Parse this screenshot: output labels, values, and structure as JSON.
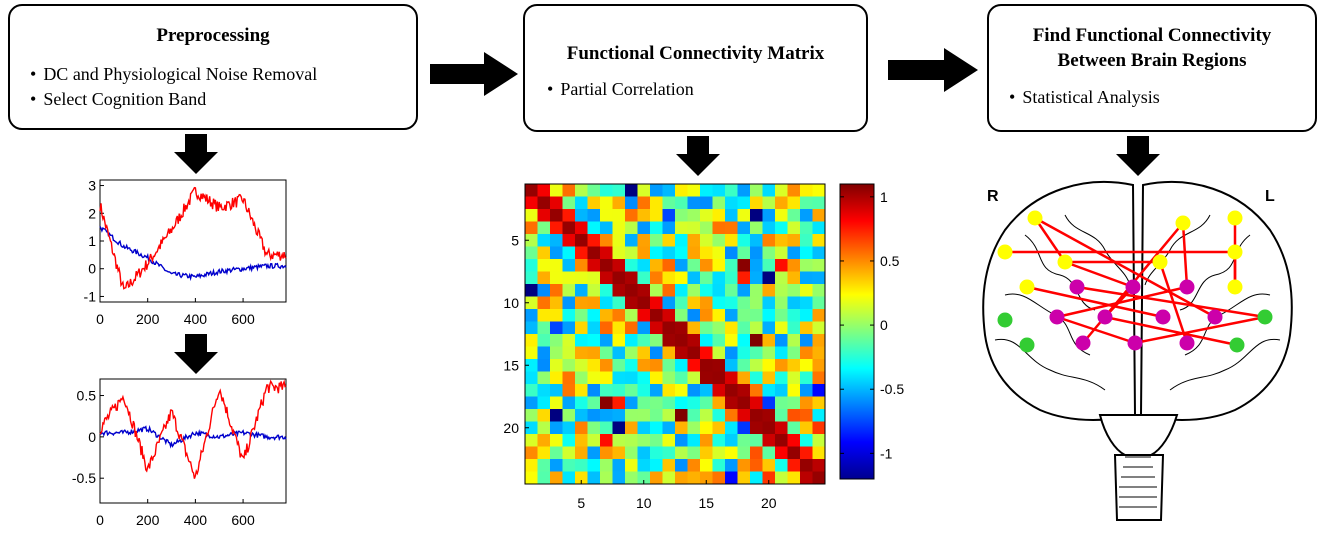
{
  "steps": [
    {
      "title": "Preprocessing",
      "bullets": [
        "DC and Physiological Noise Removal",
        "Select Cognition  Band"
      ]
    },
    {
      "title": "Functional Connectivity Matrix",
      "bullets": [
        "Partial Correlation"
      ]
    },
    {
      "title": "Find Functional Connectivity Between Brain Regions",
      "title_lines": [
        "Find Functional Connectivity",
        "Between Brain Regions"
      ],
      "bullets": [
        "Statistical Analysis"
      ]
    }
  ],
  "raw_plot": {
    "x_ticks": [
      "0",
      "200",
      "400",
      "600"
    ],
    "y_ticks": [
      "3",
      "2",
      "1",
      "0",
      "-1"
    ],
    "series_colors": [
      "#ff0000",
      "#0000cc"
    ]
  },
  "filtered_plot": {
    "x_ticks": [
      "0",
      "200",
      "400",
      "600"
    ],
    "y_ticks": [
      "0.5",
      "0",
      "-0.5"
    ]
  },
  "matrix": {
    "size": 24,
    "x_ticks": [
      "5",
      "10",
      "15",
      "20"
    ],
    "y_ticks": [
      "5",
      "10",
      "15",
      "20"
    ],
    "colorbar_ticks": [
      "1",
      "0.5",
      "0",
      "-0.5",
      "-1"
    ],
    "colormap": "jet"
  },
  "brain": {
    "left_label": "R",
    "right_label": "L",
    "node_colors": {
      "frontal": "#ffff00",
      "central": "#cc00aa",
      "temporal": "#33cc33"
    },
    "edge_color": "#ff0000"
  },
  "chart_data": [
    {
      "type": "line",
      "x": [
        0,
        100,
        200,
        300,
        400,
        500,
        600,
        700
      ],
      "series": [
        {
          "values": [
            2.3,
            -0.8,
            0.2,
            1.4,
            2.8,
            2.2,
            2.5,
            0.5
          ]
        },
        {
          "values": [
            1.5,
            0.8,
            0.4,
            -0.2,
            -0.3,
            -0.1,
            0.0,
            0.1
          ]
        }
      ],
      "xlim": [
        0,
        780
      ],
      "ylim": [
        -1.2,
        3.2
      ]
    },
    {
      "type": "line",
      "x": [
        0,
        100,
        200,
        300,
        400,
        500,
        600,
        700
      ],
      "series": [
        {
          "values": [
            0.1,
            0.5,
            -0.4,
            0.3,
            -0.5,
            0.6,
            -0.3,
            0.6
          ]
        },
        {
          "values": [
            0.05,
            0.05,
            0.1,
            -0.1,
            0.05,
            0.0,
            0.05,
            0.0
          ]
        }
      ],
      "xlim": [
        0,
        780
      ],
      "ylim": [
        -0.8,
        0.7
      ]
    },
    {
      "type": "heatmap",
      "rows": 24,
      "cols": 24,
      "zlim": [
        -1.2,
        1.1
      ]
    }
  ]
}
